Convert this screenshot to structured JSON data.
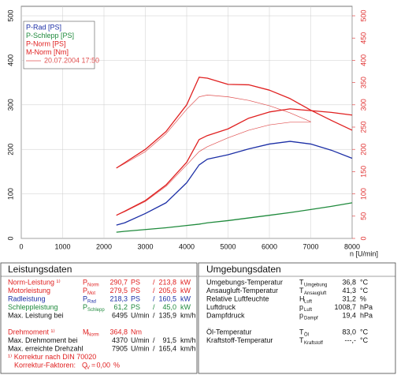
{
  "chart_data": {
    "type": "line",
    "xlabel": "n [U/min]",
    "x": [
      2300,
      2500,
      3000,
      3500,
      4000,
      4300,
      4500,
      5000,
      5500,
      6000,
      6500,
      7000,
      7500,
      8000
    ],
    "xlim": [
      0,
      8000
    ],
    "xticks": [
      0,
      1000,
      2000,
      3000,
      4000,
      5000,
      6000,
      7000,
      8000
    ],
    "ylim": [
      0,
      500
    ],
    "yticks": [
      0,
      100,
      200,
      300,
      400,
      500
    ],
    "y2lim": [
      0,
      500
    ],
    "y2ticks": [
      0,
      50,
      100,
      150,
      200,
      250,
      300,
      350,
      400,
      450,
      500
    ],
    "y2color": "#e03030",
    "grid": true,
    "legend": "upper left",
    "series": [
      {
        "name": "P-Rad [PS]",
        "color": "#1c2fa6",
        "values": [
          30,
          35,
          56,
          80,
          125,
          165,
          178,
          188,
          201,
          212,
          218,
          212,
          198,
          180
        ]
      },
      {
        "name": "P-Schlepp [PS]",
        "color": "#1f8a3c",
        "values": [
          14,
          16,
          20,
          24,
          29,
          32,
          35,
          40,
          46,
          52,
          58,
          65,
          72,
          80
        ]
      },
      {
        "name": "P-Norm [PS]",
        "color": "#e02020",
        "values": [
          52,
          61,
          85,
          120,
          171,
          222,
          231,
          246,
          270,
          284,
          291,
          287,
          283,
          277
        ]
      },
      {
        "name": "M-Norm [Nm]",
        "color": "#e02020",
        "axis": "y2",
        "values": [
          158,
          170,
          200,
          240,
          300,
          362,
          360,
          346,
          345,
          333,
          314,
          288,
          265,
          243
        ]
      }
    ],
    "comparison": {
      "label": "20.07.2004 17:50",
      "color": "#e05050",
      "series": [
        {
          "values": [
            52,
            60,
            83,
            117,
            165,
            195,
            206,
            226,
            243,
            255,
            261,
            261,
            null,
            null
          ]
        },
        {
          "axis": "y2",
          "values": [
            158,
            168,
            195,
            235,
            290,
            318,
            322,
            318,
            310,
            298,
            282,
            262,
            null,
            null
          ]
        }
      ]
    }
  },
  "power": {
    "title": "Leistungsdaten",
    "rows": [
      {
        "label": "Norm-Leistung ¹⁾",
        "sym": "P",
        "sub": "Norm",
        "v1": "290,7",
        "u1": "PS",
        "sep": "/",
        "v2": "213,8",
        "u2": "kW",
        "color": "#e02020"
      },
      {
        "label": "Motorleistung",
        "sym": "P",
        "sub": "Mot",
        "v1": "279,5",
        "u1": "PS",
        "sep": "/",
        "v2": "205,6",
        "u2": "kW",
        "color": "#e02020"
      },
      {
        "label": "Radleistung",
        "sym": "P",
        "sub": "Rad",
        "v1": "218,3",
        "u1": "PS",
        "sep": "/",
        "v2": "160,5",
        "u2": "kW",
        "color": "#1c2fa6"
      },
      {
        "label": "Schleppleistung",
        "sym": "P",
        "sub": "Schlepp",
        "v1": "61,2",
        "u1": "PS",
        "sep": "/",
        "v2": "45,0",
        "u2": "kW",
        "color": "#1f8a3c"
      },
      {
        "label": "Max. Leistung bei",
        "v1": "6495",
        "u1": "U/min",
        "sep": "/",
        "v2": "135,9",
        "u2": "km/h",
        "color": "#111"
      },
      {
        "label": "Drehmoment ¹⁾",
        "sym": "M",
        "sub": "Norm",
        "v1": "364,8",
        "u1": "Nm",
        "color": "#e02020",
        "gap": true
      },
      {
        "label": "Max. Drehmoment bei",
        "v1": "4370",
        "u1": "U/min",
        "sep": "/",
        "v2": "91,5",
        "u2": "km/h",
        "color": "#111"
      },
      {
        "label": "Max. erreichte Drehzahl",
        "v1": "7905",
        "u1": "U/min",
        "sep": "/",
        "v2": "165,4",
        "u2": "km/h",
        "color": "#111"
      }
    ],
    "footnote": "¹⁾ Korrektur nach DIN 70020",
    "correction": {
      "label": "Korrektur-Faktoren:",
      "sym": "Q",
      "sub": "V",
      "eq": "=",
      "value": "0,00",
      "unit": "%"
    }
  },
  "environment": {
    "title": "Umgebungsdaten",
    "rows": [
      {
        "label": "Umgebungs-Temperatur",
        "sym": "T",
        "sub": "Umgebung",
        "value": "36,8",
        "unit": "°C"
      },
      {
        "label": "Ansaugluft-Temperatur",
        "sym": "T",
        "sub": "Ansaugluft",
        "value": "41,3",
        "unit": "°C"
      },
      {
        "label": "Relative Luftfeuchte",
        "sym": "H",
        "sub": "Luft",
        "value": "31,2",
        "unit": "%"
      },
      {
        "label": "Luftdruck",
        "sym": "p",
        "sub": "Luft",
        "value": "1008,7",
        "unit": "hPa"
      },
      {
        "label": "Dampfdruck",
        "sym": "p",
        "sub": "Dampf",
        "value": "19,4",
        "unit": "hPa"
      },
      {
        "label": "Öl-Temperatur",
        "sym": "T",
        "sub": "Öl",
        "value": "83,0",
        "unit": "°C",
        "gap": true
      },
      {
        "label": "Kraftstoff-Temperatur",
        "sym": "T",
        "sub": "Kraftstoff",
        "value": "---,-",
        "unit": "°C"
      }
    ]
  }
}
